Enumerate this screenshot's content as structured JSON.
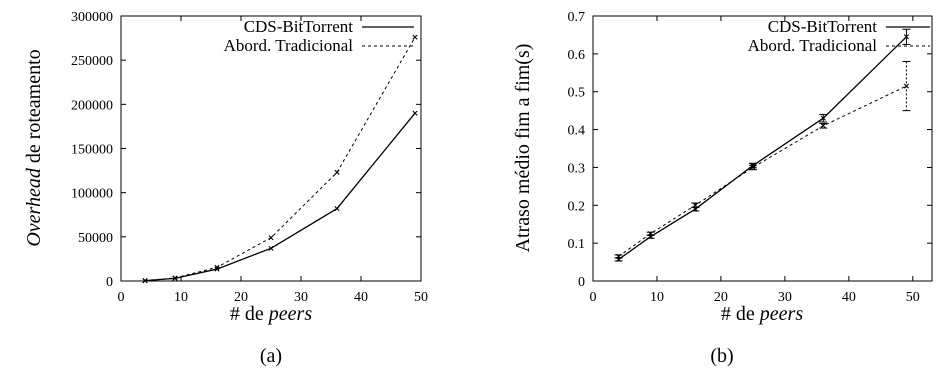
{
  "chart_data": [
    {
      "type": "line",
      "panel_label": "(a)",
      "xlabel_prefix": "# de ",
      "xlabel_emph": "peers",
      "ylabel_emph": "Overhead",
      "ylabel_rest": " de roteamento",
      "xlim": [
        0,
        50
      ],
      "ylim": [
        0,
        300000
      ],
      "xticks": [
        "0",
        "10",
        "20",
        "30",
        "40",
        "50"
      ],
      "yticks": [
        "0",
        "50000",
        "100000",
        "150000",
        "200000",
        "250000",
        "300000"
      ],
      "legend_position": "top-right",
      "series": [
        {
          "name": "CDS-BitTorrent",
          "style": "solid",
          "x": [
            4,
            9,
            16,
            25,
            36,
            49
          ],
          "y": [
            400,
            3000,
            13500,
            37000,
            82000,
            190000
          ]
        },
        {
          "name": "Abord. Tradicional",
          "style": "dashed",
          "x": [
            4,
            9,
            16,
            25,
            36,
            49
          ],
          "y": [
            500,
            3500,
            15500,
            49000,
            123000,
            276000
          ]
        }
      ]
    },
    {
      "type": "line",
      "panel_label": "(b)",
      "xlabel_prefix": "# de ",
      "xlabel_emph": "peers",
      "ylabel": "Atraso médio fim a fim(s)",
      "xlim": [
        0,
        53
      ],
      "ylim": [
        0,
        0.7
      ],
      "xticks": [
        "0",
        "10",
        "20",
        "30",
        "40",
        "50"
      ],
      "yticks": [
        "0",
        "0.1",
        "0.2",
        "0.3",
        "0.4",
        "0.5",
        "0.6",
        "0.7"
      ],
      "legend_position": "top-right",
      "series": [
        {
          "name": "CDS-BitTorrent",
          "style": "solid",
          "x": [
            4,
            9,
            16,
            25,
            36,
            49
          ],
          "y": [
            0.057,
            0.117,
            0.19,
            0.305,
            0.43,
            0.645
          ],
          "err": [
            0.004,
            0.004,
            0.005,
            0.006,
            0.01,
            0.02
          ]
        },
        {
          "name": "Abord. Tradicional",
          "style": "dashed",
          "x": [
            4,
            9,
            16,
            25,
            36,
            49
          ],
          "y": [
            0.065,
            0.125,
            0.2,
            0.3,
            0.41,
            0.515
          ],
          "err": [
            0.004,
            0.004,
            0.006,
            0.006,
            0.006,
            0.065
          ]
        }
      ]
    }
  ]
}
